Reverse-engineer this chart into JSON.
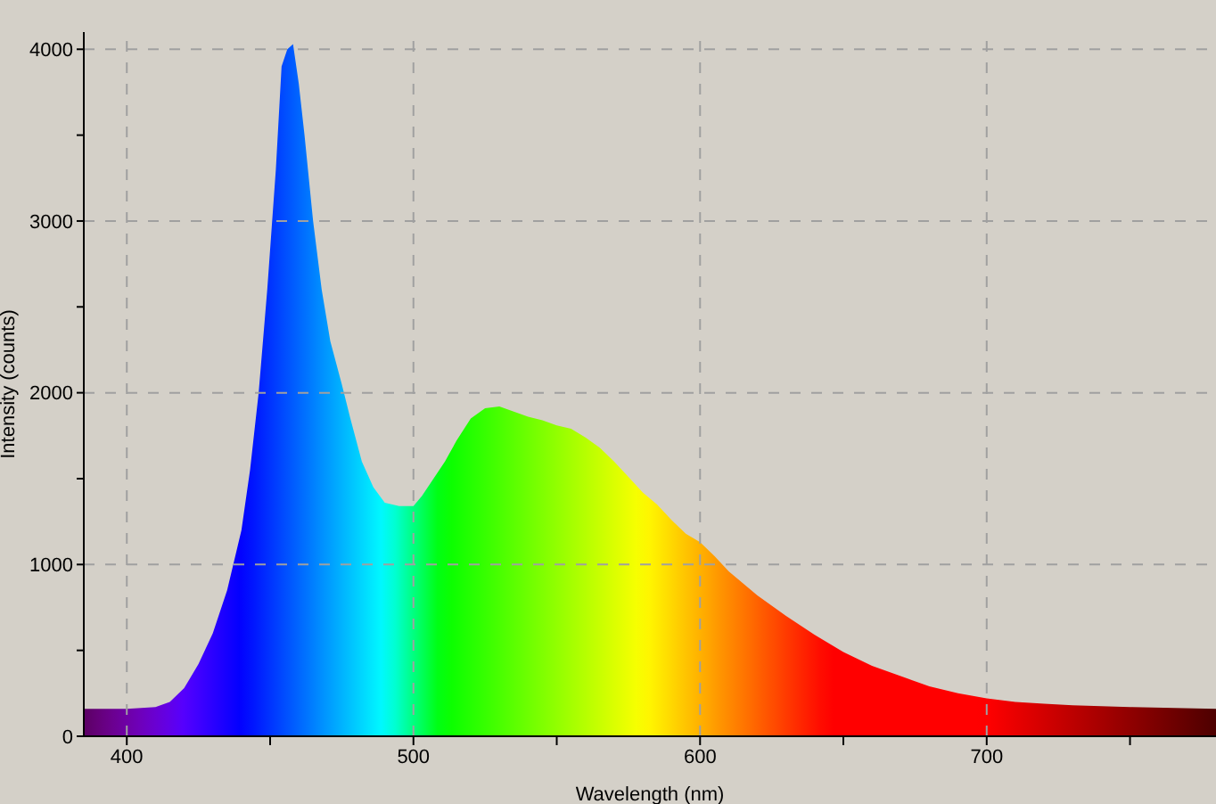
{
  "chart_data": {
    "type": "area",
    "xlabel": "Wavelength (nm)",
    "ylabel": "Intensity (counts)",
    "x": [
      385,
      400,
      410,
      415,
      420,
      425,
      430,
      435,
      440,
      443,
      446,
      449,
      452,
      454,
      456,
      458,
      460,
      462,
      465,
      468,
      471,
      475,
      478,
      482,
      486,
      490,
      495,
      500,
      503,
      507,
      511,
      515,
      520,
      525,
      530,
      535,
      540,
      545,
      550,
      555,
      560,
      565,
      570,
      575,
      580,
      585,
      590,
      595,
      600,
      605,
      610,
      615,
      620,
      625,
      630,
      640,
      650,
      660,
      670,
      680,
      690,
      700,
      710,
      720,
      730,
      750,
      780
    ],
    "values": [
      160,
      160,
      170,
      200,
      280,
      420,
      600,
      850,
      1200,
      1550,
      2000,
      2600,
      3300,
      3900,
      4000,
      4030,
      3800,
      3500,
      3000,
      2600,
      2300,
      2050,
      1850,
      1600,
      1450,
      1360,
      1340,
      1340,
      1400,
      1500,
      1600,
      1720,
      1850,
      1910,
      1920,
      1890,
      1860,
      1840,
      1810,
      1790,
      1740,
      1680,
      1600,
      1510,
      1420,
      1350,
      1260,
      1180,
      1130,
      1050,
      960,
      890,
      820,
      760,
      700,
      590,
      490,
      410,
      350,
      290,
      250,
      220,
      200,
      190,
      180,
      170,
      160
    ],
    "xlim": [
      385,
      780
    ],
    "xticks": [
      400,
      {
        "value": 450,
        "label": null
      },
      500,
      {
        "value": 550,
        "label": null
      },
      600,
      {
        "value": 650,
        "label": null
      },
      700,
      {
        "value": 750,
        "label": null
      }
    ],
    "ylim": [
      0,
      4100
    ],
    "yticks": [
      0,
      {
        "value": 500,
        "label": null
      },
      1000,
      {
        "value": 1500,
        "label": null
      },
      2000,
      {
        "value": 2500,
        "label": null
      },
      3000,
      {
        "value": 3500,
        "label": null
      },
      4000
    ],
    "grid": true
  }
}
